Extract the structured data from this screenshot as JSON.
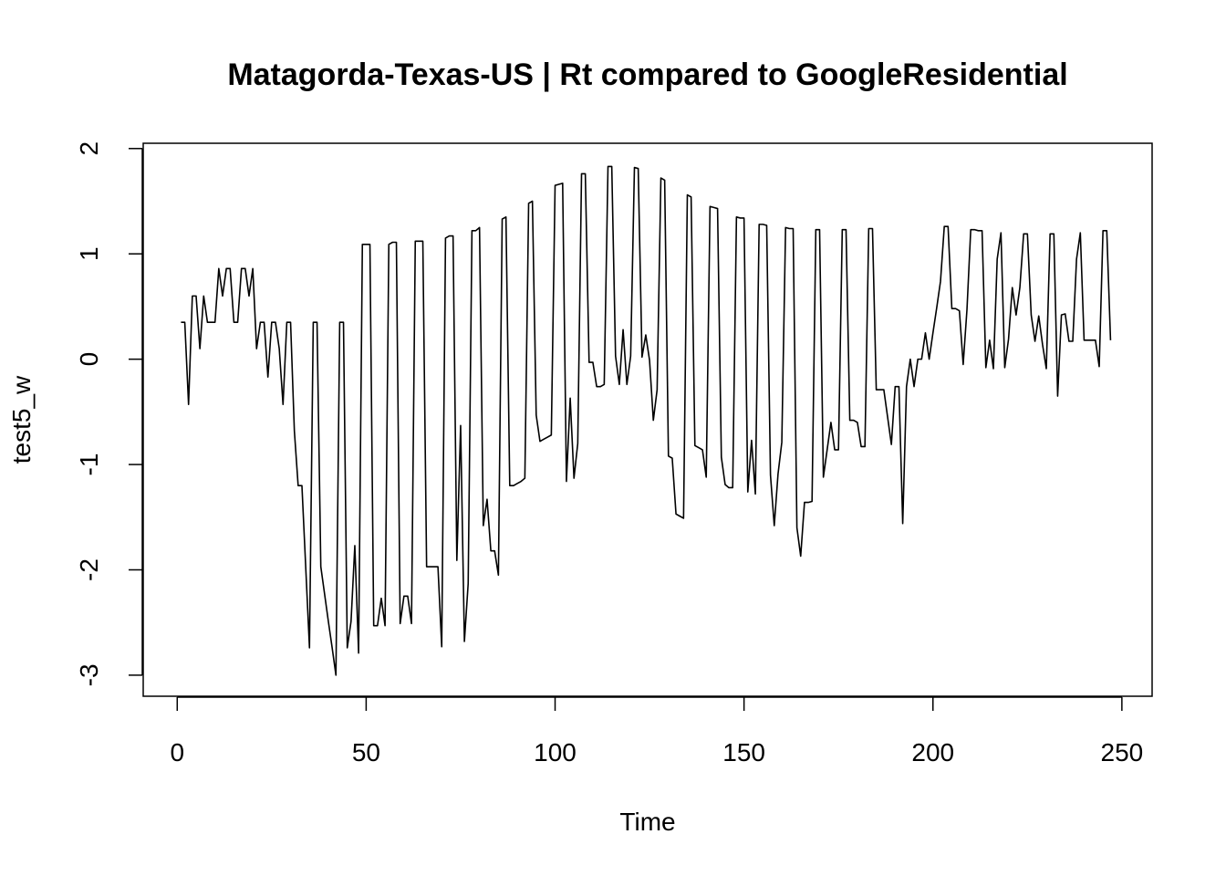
{
  "chart_data": {
    "type": "line",
    "title": "Matagorda-Texas-US | Rt compared to GoogleResidential",
    "xlabel": "Time",
    "ylabel": "test5_w",
    "xlim": [
      -9,
      258
    ],
    "ylim": [
      -3.2,
      2.05
    ],
    "x_ticks": [
      0,
      50,
      100,
      150,
      200,
      250
    ],
    "x_tick_labels": [
      "0",
      "50",
      "100",
      "150",
      "200",
      "250"
    ],
    "y_ticks": [
      -3,
      -2,
      -1,
      0,
      1,
      2
    ],
    "y_tick_labels": [
      "-3",
      "-2",
      "-1",
      "0",
      "1",
      "2"
    ],
    "grid": false,
    "legend": "none",
    "line_color": "#000000",
    "x_start": 1,
    "series": [
      {
        "values": [
          0.35,
          0.35,
          -0.43,
          0.6,
          0.6,
          0.1,
          0.6,
          0.35,
          0.35,
          0.35,
          0.86,
          0.6,
          0.86,
          0.86,
          0.35,
          0.35,
          0.86,
          0.86,
          0.6,
          0.86,
          0.1,
          0.35,
          0.35,
          -0.17,
          0.35,
          0.35,
          0.1,
          -0.43,
          0.35,
          0.35,
          -0.68,
          -1.2,
          -1.2,
          -1.97,
          -2.74,
          0.35,
          0.35,
          -1.97,
          -2.23,
          -2.49,
          -2.74,
          -3.0,
          0.35,
          0.35,
          -2.74,
          -2.49,
          -1.77,
          -2.79,
          1.09,
          1.09,
          1.09,
          -2.53,
          -2.53,
          -2.27,
          -2.53,
          1.09,
          1.11,
          1.11,
          -2.51,
          -2.25,
          -2.25,
          -2.51,
          1.12,
          1.12,
          1.12,
          -1.97,
          -1.97,
          -1.97,
          -1.97,
          -2.73,
          1.15,
          1.17,
          1.17,
          -1.91,
          -0.63,
          -2.68,
          -2.13,
          1.22,
          1.22,
          1.25,
          -1.58,
          -1.33,
          -1.82,
          -1.82,
          -2.05,
          1.33,
          1.35,
          -1.2,
          -1.2,
          -1.18,
          -1.16,
          -1.13,
          1.48,
          1.5,
          -0.53,
          -0.78,
          -0.76,
          -0.74,
          -0.72,
          1.65,
          1.66,
          1.67,
          -1.16,
          -0.37,
          -1.13,
          -0.8,
          1.76,
          1.76,
          -0.03,
          -0.03,
          -0.26,
          -0.26,
          -0.24,
          1.83,
          1.83,
          0.03,
          -0.24,
          0.28,
          -0.24,
          0.03,
          1.82,
          1.81,
          0.02,
          0.23,
          -0.01,
          -0.58,
          -0.29,
          1.72,
          1.7,
          -0.92,
          -0.94,
          -1.47,
          -1.49,
          -1.51,
          1.56,
          1.54,
          -0.82,
          -0.84,
          -0.86,
          -1.12,
          1.45,
          1.44,
          1.43,
          -0.93,
          -1.19,
          -1.22,
          -1.22,
          1.35,
          1.34,
          1.34,
          -1.26,
          -0.77,
          -1.28,
          1.28,
          1.28,
          1.27,
          -1.1,
          -1.58,
          -1.09,
          -0.79,
          1.25,
          1.24,
          1.24,
          -1.6,
          -1.87,
          -1.36,
          -1.36,
          -1.35,
          1.23,
          1.23,
          -1.12,
          -0.86,
          -0.6,
          -0.86,
          -0.86,
          1.23,
          1.23,
          -0.58,
          -0.58,
          -0.6,
          -0.83,
          -0.83,
          1.24,
          1.24,
          -0.29,
          -0.29,
          -0.29,
          -0.55,
          -0.81,
          -0.26,
          -0.26,
          -1.56,
          -0.26,
          0.0,
          -0.26,
          0.0,
          0.0,
          0.25,
          0.0,
          0.25,
          0.49,
          0.74,
          1.26,
          1.26,
          0.48,
          0.48,
          0.46,
          -0.05,
          0.47,
          1.23,
          1.23,
          1.22,
          1.22,
          -0.08,
          0.18,
          -0.09,
          0.95,
          1.2,
          -0.08,
          0.19,
          0.68,
          0.42,
          0.68,
          1.19,
          1.19,
          0.42,
          0.17,
          0.41,
          0.14,
          -0.09,
          1.19,
          1.19,
          -0.35,
          0.42,
          0.43,
          0.17,
          0.17,
          0.95,
          1.2,
          0.18,
          0.18,
          0.18,
          0.18,
          -0.07,
          1.22,
          1.22,
          0.18
        ]
      }
    ]
  }
}
